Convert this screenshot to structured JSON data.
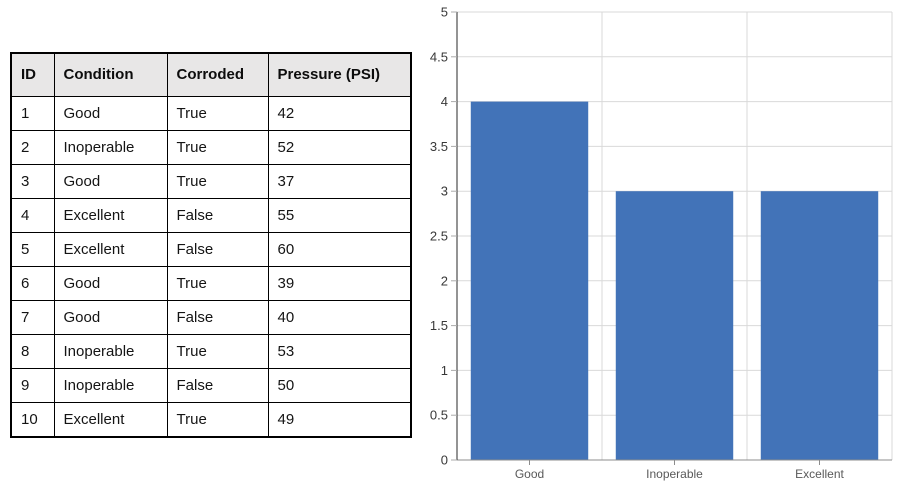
{
  "table": {
    "headers": [
      "ID",
      "Condition",
      "Corroded",
      "Pressure (PSI)"
    ],
    "rows": [
      [
        "1",
        "Good",
        "True",
        "42"
      ],
      [
        "2",
        "Inoperable",
        "True",
        "52"
      ],
      [
        "3",
        "Good",
        "True",
        "37"
      ],
      [
        "4",
        "Excellent",
        "False",
        "55"
      ],
      [
        "5",
        "Excellent",
        "False",
        "60"
      ],
      [
        "6",
        "Good",
        "True",
        "39"
      ],
      [
        "7",
        "Good",
        "False",
        "40"
      ],
      [
        "8",
        "Inoperable",
        "True",
        "53"
      ],
      [
        "9",
        "Inoperable",
        "False",
        "50"
      ],
      [
        "10",
        "Excellent",
        "True",
        "49"
      ]
    ],
    "header_bg_color": "#e8e7e7",
    "border_color": "#000000"
  },
  "chart_data": {
    "type": "bar",
    "categories": [
      "Good",
      "Inoperable",
      "Excellent"
    ],
    "values": [
      4,
      3,
      3
    ],
    "title": "",
    "xlabel": "",
    "ylabel": "",
    "ylim": [
      0,
      5
    ],
    "yticks": [
      0,
      0.5,
      1,
      1.5,
      2,
      2.5,
      3,
      3.5,
      4,
      4.5,
      5
    ],
    "grid": true,
    "legend": false,
    "bar_color": "#4273B8",
    "gridline_color": "#D9D9D9",
    "y_axis_color": "#4D4D4D",
    "x_axis_color": "#8C8C8C",
    "tick_color": "#ABABAB",
    "y_label_color": "#383838",
    "x_label_color": "#595959"
  }
}
